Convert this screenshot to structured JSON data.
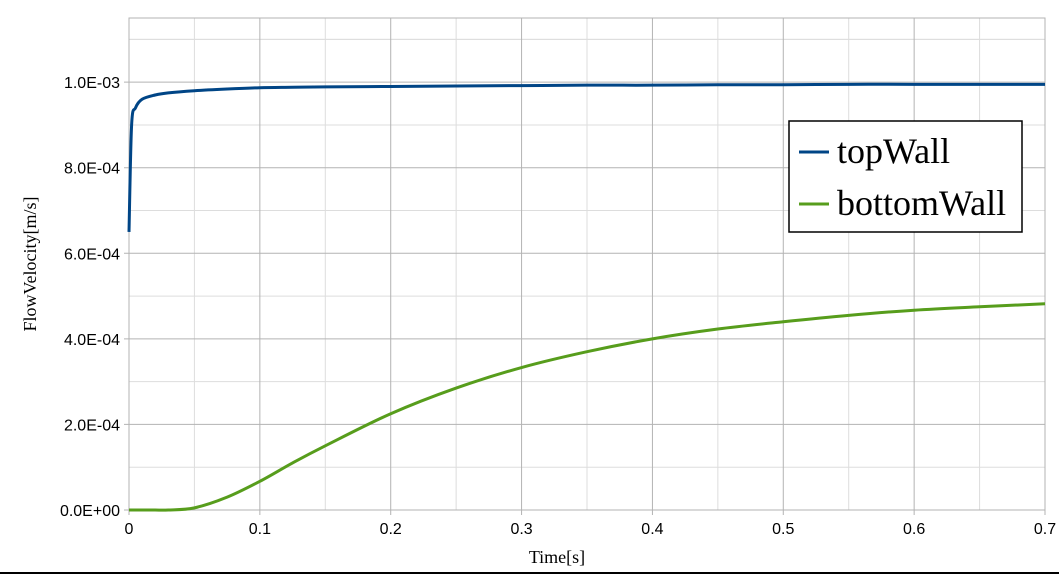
{
  "chart_data": {
    "type": "line",
    "title": "",
    "xlabel": "Time[s]",
    "ylabel": "FlowVelocity[m/s]",
    "xlim": [
      0,
      0.7
    ],
    "ylim": [
      0,
      0.00115
    ],
    "x_ticks": [
      "0",
      "0.1",
      "0.2",
      "0.3",
      "0.4",
      "0.5",
      "0.6",
      "0.7"
    ],
    "y_ticks": [
      "0.0E+00",
      "2.0E-04",
      "4.0E-04",
      "6.0E-04",
      "8.0E-04",
      "1.0E-03"
    ],
    "grid": true,
    "legend_position": "upper right (inside)",
    "x": [
      0,
      0.002,
      0.005,
      0.01,
      0.02,
      0.03,
      0.05,
      0.075,
      0.1,
      0.125,
      0.15,
      0.2,
      0.25,
      0.3,
      0.35,
      0.4,
      0.45,
      0.5,
      0.55,
      0.6,
      0.65,
      0.7
    ],
    "series": [
      {
        "name": "topWall",
        "color": "#004586",
        "values": [
          0.00065,
          0.0009,
          0.00094,
          0.00096,
          0.00097,
          0.000975,
          0.00098,
          0.000984,
          0.000987,
          0.000988,
          0.000989,
          0.00099,
          0.000991,
          0.000992,
          0.000993,
          0.000993,
          0.000994,
          0.000994,
          0.000995,
          0.000995,
          0.000995,
          0.000995
        ]
      },
      {
        "name": "bottomWall",
        "color": "#579d1c",
        "values": [
          0.0,
          0.0,
          0.0,
          0.0,
          0.0,
          0.0,
          5e-06,
          3e-05,
          6.7e-05,
          0.00011,
          0.00015,
          0.000225,
          0.000285,
          0.000333,
          0.00037,
          0.0004,
          0.000423,
          0.00044,
          0.000455,
          0.000467,
          0.000475,
          0.000482
        ]
      }
    ]
  }
}
